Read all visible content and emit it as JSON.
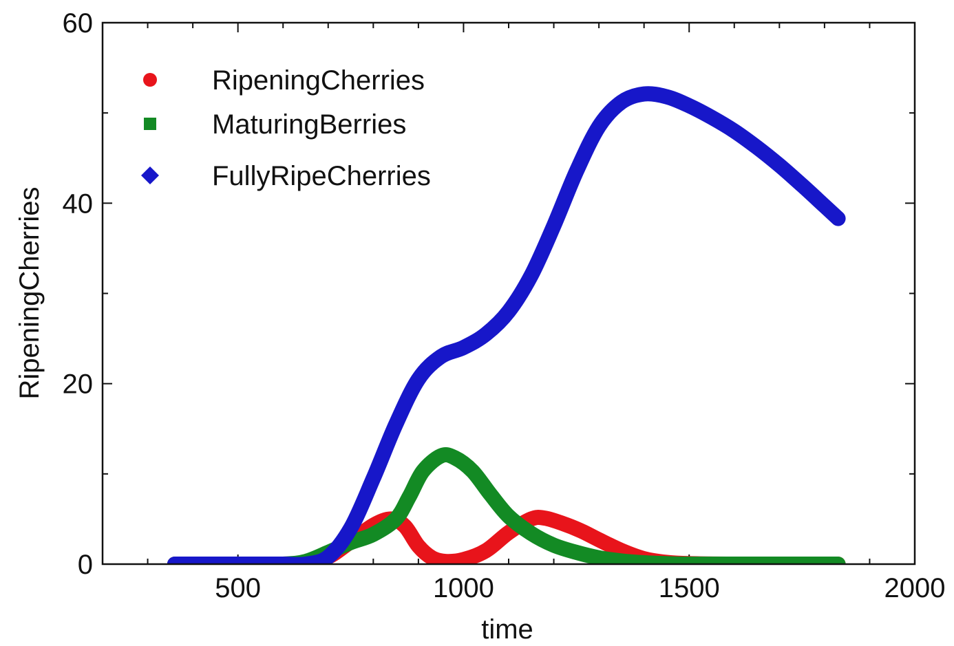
{
  "chart_data": {
    "type": "line",
    "title": "",
    "xlabel": "time",
    "ylabel": "RipeningCherries",
    "xlim": [
      200,
      2000
    ],
    "ylim": [
      0,
      60
    ],
    "xticks": [
      500,
      1000,
      1500,
      2000
    ],
    "yticks": [
      0,
      20,
      40,
      60
    ],
    "grid": false,
    "legend_position": "top-left",
    "series": [
      {
        "name": "RipeningCherries",
        "color": "#e8141b",
        "marker": "circle",
        "points": [
          [
            360,
            0
          ],
          [
            500,
            0
          ],
          [
            600,
            0
          ],
          [
            650,
            0.2
          ],
          [
            700,
            0.8
          ],
          [
            750,
            2.5
          ],
          [
            800,
            4.3
          ],
          [
            840,
            5
          ],
          [
            870,
            4.2
          ],
          [
            900,
            2
          ],
          [
            930,
            0.7
          ],
          [
            960,
            0.3
          ],
          [
            1000,
            0.5
          ],
          [
            1050,
            1.5
          ],
          [
            1100,
            3.5
          ],
          [
            1150,
            5
          ],
          [
            1180,
            5.1
          ],
          [
            1220,
            4.5
          ],
          [
            1260,
            3.7
          ],
          [
            1300,
            2.7
          ],
          [
            1350,
            1.5
          ],
          [
            1400,
            0.6
          ],
          [
            1450,
            0.2
          ],
          [
            1500,
            0.05
          ],
          [
            1600,
            0
          ],
          [
            1700,
            0
          ],
          [
            1830,
            0
          ]
        ]
      },
      {
        "name": "MaturingBerries",
        "color": "#138a24",
        "marker": "square",
        "points": [
          [
            360,
            0
          ],
          [
            500,
            0
          ],
          [
            600,
            0
          ],
          [
            650,
            0.3
          ],
          [
            700,
            1.3
          ],
          [
            750,
            2.4
          ],
          [
            800,
            3.3
          ],
          [
            850,
            5
          ],
          [
            880,
            7.5
          ],
          [
            910,
            10.3
          ],
          [
            950,
            12
          ],
          [
            980,
            11.8
          ],
          [
            1020,
            10.3
          ],
          [
            1060,
            7.7
          ],
          [
            1100,
            5.3
          ],
          [
            1150,
            3.4
          ],
          [
            1200,
            2.1
          ],
          [
            1250,
            1.3
          ],
          [
            1300,
            0.7
          ],
          [
            1350,
            0.35
          ],
          [
            1400,
            0.15
          ],
          [
            1450,
            0.05
          ],
          [
            1500,
            0
          ],
          [
            1600,
            0
          ],
          [
            1700,
            0
          ],
          [
            1830,
            0
          ]
        ]
      },
      {
        "name": "FullyRipeCherries",
        "color": "#1717c9",
        "marker": "diamond",
        "points": [
          [
            360,
            0
          ],
          [
            500,
            0
          ],
          [
            600,
            0
          ],
          [
            650,
            0
          ],
          [
            700,
            0.8
          ],
          [
            750,
            4
          ],
          [
            800,
            9.5
          ],
          [
            850,
            15.5
          ],
          [
            900,
            20.5
          ],
          [
            950,
            23
          ],
          [
            1000,
            24
          ],
          [
            1050,
            25.5
          ],
          [
            1100,
            28
          ],
          [
            1150,
            32
          ],
          [
            1200,
            37.5
          ],
          [
            1250,
            43.5
          ],
          [
            1300,
            48.5
          ],
          [
            1350,
            51.2
          ],
          [
            1400,
            52.1
          ],
          [
            1450,
            51.8
          ],
          [
            1500,
            50.8
          ],
          [
            1550,
            49.5
          ],
          [
            1600,
            48
          ],
          [
            1650,
            46.2
          ],
          [
            1700,
            44.2
          ],
          [
            1750,
            42
          ],
          [
            1800,
            39.7
          ],
          [
            1830,
            38.3
          ]
        ]
      }
    ]
  }
}
